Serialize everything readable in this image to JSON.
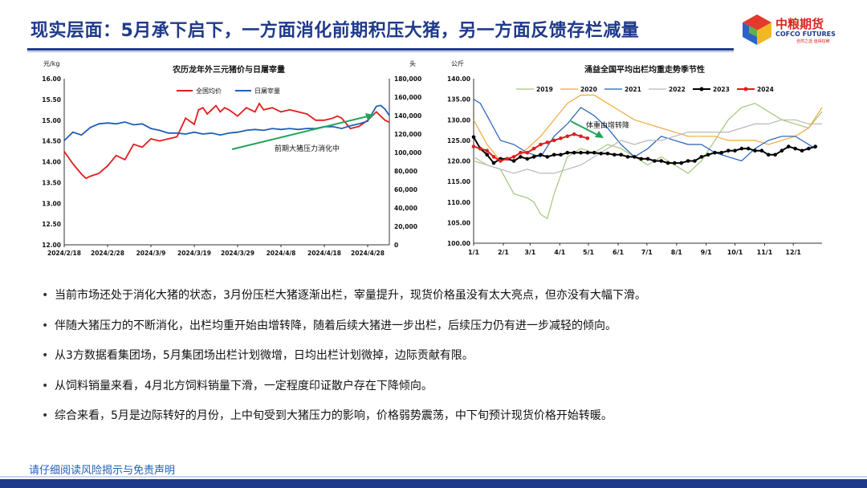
{
  "header": {
    "title": "现实层面：5月承下启下，一方面消化前期积压大猪，另一方面反馈存栏减量",
    "logo_cn": "中粮期货",
    "logo_en": "COFCO FUTURES",
    "logo_sub": "自然之选 值得信赖"
  },
  "colors": {
    "brand": "#1f3a8a",
    "logo_red": "#d9251d"
  },
  "bullets": [
    "当前市场还处于消化大猪的状态，3月份压栏大猪逐渐出栏，宰量提升，现货价格虽没有太大亮点，但亦没有大幅下滑。",
    "伴随大猪压力的不断消化，出栏均重开始由增转降，随着后续大猪进一步出栏，后续压力仍有进一步减轻的倾向。",
    "从3方数据看集团场，5月集团场出栏计划微增，日均出栏计划微掉，边际贡献有限。",
    "从饲料销量来看，4月北方饲料销量下滑，一定程度印证散户存在下降倾向。",
    "综合来看，5月是边际转好的月份，上中旬受到大猪压力的影响，价格弱势震荡，中下旬预计现货价格开始转暖。"
  ],
  "footer": {
    "disclaimer": "请仔细阅读风险揭示与免责声明"
  },
  "chart_data": [
    {
      "type": "line",
      "title": "农历龙年外三元猪价与日屠宰量",
      "ylabel_left": "元/kg",
      "ylabel_right": "头",
      "ylim_left": [
        12.0,
        16.0
      ],
      "ylim_right": [
        0,
        180000
      ],
      "yticks_left": [
        "16.00",
        "15.50",
        "15.00",
        "14.50",
        "14.00",
        "13.50",
        "13.00",
        "12.50",
        "12.00"
      ],
      "yticks_right": [
        "180,000",
        "160,000",
        "140,000",
        "120,000",
        "100,000",
        "80,000",
        "60,000",
        "40,000",
        "20,000",
        "0"
      ],
      "x_range": [
        0,
        75
      ],
      "xticks": [
        {
          "label": "2024/2/18",
          "x": 0
        },
        {
          "label": "2024/2/28",
          "x": 10
        },
        {
          "label": "2024/3/9",
          "x": 20
        },
        {
          "label": "2024/3/19",
          "x": 30
        },
        {
          "label": "2024/3/29",
          "x": 40
        },
        {
          "label": "2024/4/8",
          "x": 50
        },
        {
          "label": "2024/4/18",
          "x": 60
        },
        {
          "label": "2024/4/28",
          "x": 70
        }
      ],
      "annotation": "前期大猪压力消化中",
      "series": [
        {
          "name": "全国均价",
          "color": "#e11d1d",
          "axis": "left",
          "x": [
            0,
            2,
            4,
            5,
            6,
            8,
            10,
            12,
            14,
            16,
            18,
            20,
            22,
            24,
            26,
            28,
            30,
            31,
            32,
            33,
            34,
            35,
            36,
            37,
            38,
            40,
            42,
            44,
            45,
            46,
            48,
            50,
            52,
            54,
            56,
            58,
            60,
            62,
            63,
            64,
            66,
            68,
            70,
            71,
            72,
            73,
            74,
            75
          ],
          "y": [
            14.25,
            13.95,
            13.7,
            13.6,
            13.65,
            13.72,
            13.9,
            14.15,
            14.05,
            14.42,
            14.35,
            14.55,
            14.5,
            14.55,
            14.6,
            15.05,
            14.9,
            15.25,
            15.3,
            15.15,
            15.25,
            15.35,
            15.2,
            15.3,
            15.25,
            15.1,
            15.3,
            15.2,
            15.4,
            15.25,
            15.3,
            15.2,
            15.25,
            15.2,
            15.15,
            15.0,
            15.0,
            15.05,
            15.1,
            15.05,
            14.8,
            14.85,
            15.0,
            15.1,
            15.2,
            15.1,
            15.0,
            14.95
          ]
        },
        {
          "name": "日屠宰量",
          "color": "#1f5fb8",
          "axis": "right",
          "x": [
            0,
            2,
            4,
            6,
            8,
            10,
            12,
            14,
            16,
            18,
            20,
            22,
            24,
            26,
            28,
            30,
            32,
            34,
            36,
            38,
            40,
            42,
            44,
            46,
            48,
            50,
            52,
            54,
            56,
            58,
            60,
            62,
            64,
            66,
            68,
            70,
            71,
            72,
            73,
            74,
            75
          ],
          "y": [
            113000,
            122000,
            119000,
            127000,
            131000,
            132000,
            131000,
            133000,
            130000,
            131000,
            126000,
            124000,
            121000,
            121000,
            120000,
            122000,
            120000,
            121000,
            119000,
            121000,
            122000,
            124000,
            125000,
            124000,
            126000,
            125000,
            126000,
            125000,
            126000,
            126000,
            128000,
            128000,
            126000,
            129000,
            131000,
            134000,
            142000,
            150000,
            151000,
            147000,
            140000
          ]
        }
      ]
    },
    {
      "type": "line",
      "title": "涌益全国平均出栏均重走势季节性",
      "ylabel_left": "公斤",
      "ylim": [
        100,
        140
      ],
      "yticks": [
        "140.00",
        "135.00",
        "130.00",
        "125.00",
        "120.00",
        "115.00",
        "110.00",
        "105.00",
        "100.00"
      ],
      "x_range": [
        0,
        52
      ],
      "xticks": [
        {
          "label": "1/1",
          "x": 0
        },
        {
          "label": "2/1",
          "x": 4.43
        },
        {
          "label": "3/1",
          "x": 8.43
        },
        {
          "label": "4/1",
          "x": 12.86
        },
        {
          "label": "5/1",
          "x": 17.14
        },
        {
          "label": "6/1",
          "x": 21.57
        },
        {
          "label": "7/1",
          "x": 25.86
        },
        {
          "label": "8/1",
          "x": 30.29
        },
        {
          "label": "9/1",
          "x": 34.71
        },
        {
          "label": "10/1",
          "x": 39.0
        },
        {
          "label": "11/1",
          "x": 43.43
        },
        {
          "label": "12/1",
          "x": 47.71
        }
      ],
      "annotation": "体重由增转降",
      "series": [
        {
          "name": "2019",
          "color": "#a3c679",
          "marker": "none",
          "x": [
            0,
            2,
            4,
            6,
            8,
            9,
            10,
            11,
            12,
            14,
            16,
            18,
            20,
            22,
            24,
            26,
            28,
            30,
            32,
            34,
            36,
            38,
            40,
            42,
            44,
            46,
            48,
            50,
            52
          ],
          "y": [
            120,
            119,
            118,
            112,
            111,
            110,
            107,
            106,
            112,
            121,
            123,
            122,
            124,
            123,
            121,
            119,
            121,
            119,
            117,
            120,
            125,
            130,
            133,
            134,
            132,
            130,
            129,
            128,
            132
          ]
        },
        {
          "name": "2020",
          "color": "#f2a93b",
          "marker": "none",
          "x": [
            0,
            2,
            4,
            6,
            8,
            10,
            12,
            14,
            16,
            18,
            20,
            22,
            24,
            26,
            28,
            30,
            32,
            34,
            36,
            38,
            40,
            42,
            44,
            46,
            48,
            50,
            52
          ],
          "y": [
            130,
            124,
            120,
            121,
            123,
            126,
            130,
            134,
            136,
            136,
            134,
            132,
            130,
            129,
            128,
            127,
            126,
            126,
            126,
            125,
            125,
            125,
            124,
            125,
            126,
            128,
            133
          ]
        },
        {
          "name": "2021",
          "color": "#1f5fb8",
          "marker": "none",
          "x": [
            0,
            1,
            2,
            3,
            4,
            6,
            8,
            10,
            12,
            14,
            16,
            18,
            20,
            22,
            24,
            26,
            28,
            30,
            32,
            34,
            36,
            38,
            40,
            42,
            44,
            46,
            48,
            50,
            51
          ],
          "y": [
            135,
            134,
            131,
            128,
            125,
            124,
            122,
            121,
            126,
            129,
            133,
            131,
            128,
            124,
            121,
            123,
            126,
            125,
            124,
            124,
            122,
            121,
            120,
            123,
            125,
            126,
            126,
            124,
            123
          ]
        },
        {
          "name": "2022",
          "color": "#b8b8b8",
          "marker": "none",
          "x": [
            0,
            2,
            4,
            6,
            8,
            10,
            12,
            14,
            16,
            18,
            20,
            22,
            24,
            26,
            28,
            30,
            32,
            34,
            36,
            38,
            40,
            42,
            44,
            46,
            48,
            50,
            52
          ],
          "y": [
            121,
            119,
            118,
            117,
            118,
            117,
            117,
            118,
            119,
            121,
            123,
            125,
            124,
            125,
            125,
            126,
            127,
            127,
            127,
            127,
            128,
            129,
            129,
            130,
            130,
            129,
            129
          ]
        },
        {
          "name": "2023",
          "color": "#000000",
          "marker": "circle",
          "x": [
            0,
            1,
            2,
            3,
            4,
            5,
            6,
            7,
            8,
            9,
            10,
            11,
            12,
            13,
            14,
            15,
            16,
            17,
            18,
            19,
            20,
            21,
            22,
            23,
            24,
            25,
            26,
            27,
            28,
            29,
            30,
            31,
            32,
            33,
            34,
            35,
            36,
            37,
            38,
            39,
            40,
            41,
            42,
            43,
            44,
            45,
            46,
            47,
            48,
            49,
            50,
            51
          ],
          "y": [
            125.8,
            123,
            121.5,
            119.5,
            120.5,
            120.5,
            120,
            121,
            120.5,
            121,
            121.5,
            121,
            121.5,
            121.5,
            122,
            122,
            122,
            122,
            122,
            121.8,
            121.8,
            121.5,
            121.5,
            121,
            121,
            120.5,
            120.5,
            120,
            120,
            119.5,
            119.5,
            119.5,
            120,
            120,
            121,
            121.5,
            122,
            122,
            122.5,
            122.5,
            123,
            123,
            122.5,
            122.5,
            121.5,
            121.5,
            122.5,
            123.5,
            123,
            122.5,
            123,
            123.5
          ]
        },
        {
          "name": "2024",
          "color": "#e11d1d",
          "marker": "circle",
          "x": [
            0,
            1,
            2,
            3,
            4,
            5,
            6,
            7,
            8,
            9,
            10,
            11,
            12,
            13,
            14,
            15,
            16,
            17
          ],
          "y": [
            123.5,
            123,
            122.5,
            121,
            120,
            120.5,
            121,
            122,
            122,
            123,
            124,
            124.5,
            125,
            125.5,
            126,
            126.5,
            126,
            125.5
          ]
        }
      ]
    }
  ]
}
